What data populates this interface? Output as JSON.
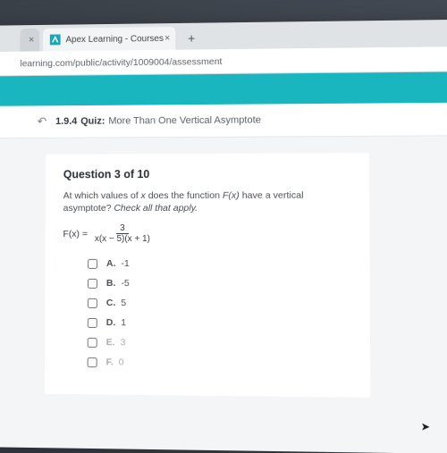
{
  "browser": {
    "tab_title": "Apex Learning - Courses",
    "url": "learning.com/public/activity/1009004/assessment",
    "favicon_color": "#1aa6b7",
    "tabbar_bg": "#dfe3e6",
    "addr_color": "#5f6368"
  },
  "banner": {
    "color": "#19b6c0"
  },
  "quiz_header": {
    "code": "1.9.4",
    "label": "Quiz:",
    "title": "More Than One Vertical Asymptote"
  },
  "question": {
    "counter": "Question 3 of 10",
    "prompt_a": "At which values of ",
    "prompt_var": "x",
    "prompt_b": " does the function ",
    "prompt_fn": "F(x)",
    "prompt_c": " have a vertical asymptote? ",
    "prompt_hint": "Check all that apply.",
    "formula_lhs": "F(x) =",
    "formula_num": "3",
    "formula_den": "x(x − 5)(x + 1)"
  },
  "options": [
    {
      "letter": "A.",
      "value": "-1",
      "faded": false
    },
    {
      "letter": "B.",
      "value": "-5",
      "faded": false
    },
    {
      "letter": "C.",
      "value": "5",
      "faded": false
    },
    {
      "letter": "D.",
      "value": "1",
      "faded": false
    },
    {
      "letter": "E.",
      "value": "3",
      "faded": true
    },
    {
      "letter": "F.",
      "value": "0",
      "faded": true
    }
  ],
  "styling": {
    "page_bg": "#f4f5f6",
    "card_bg": "#ffffff",
    "text_primary": "#2a2d31",
    "text_body": "#4a4e54",
    "text_faded": "#a9adb3"
  }
}
